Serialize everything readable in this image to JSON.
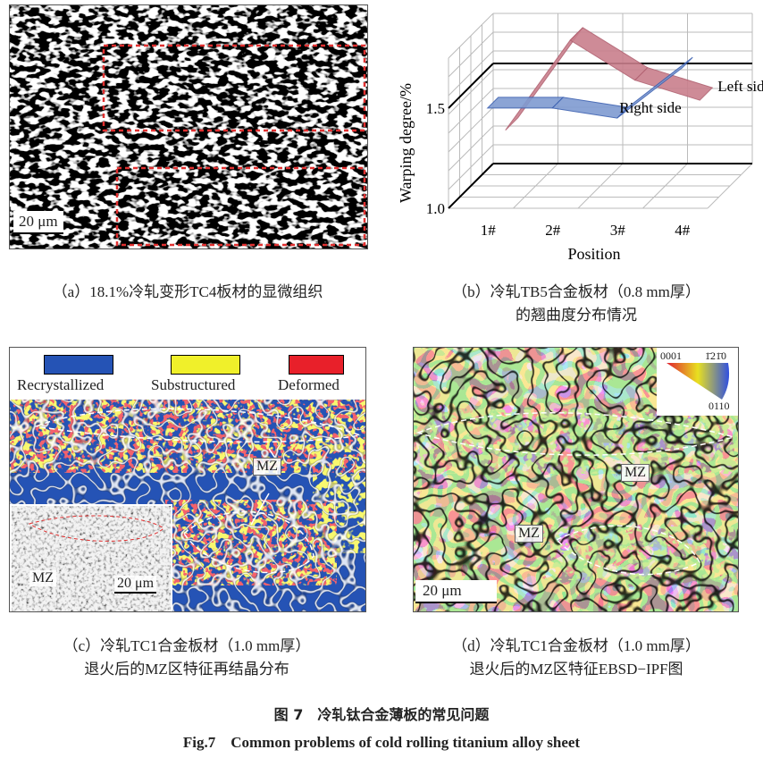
{
  "panel_a": {
    "scale_bar": "20 μm",
    "caption": "（a）18.1%冷轧变形TC4板材的显微组织"
  },
  "panel_b": {
    "caption_line1": "（b）冷轧TB5合金板材（0.8 mm厚）",
    "caption_line2": "的翘曲度分布情况"
  },
  "chart_data": {
    "type": "line",
    "style": "3d-ribbon",
    "categories": [
      "1#",
      "2#",
      "3#",
      "4#"
    ],
    "xlabel": "Position",
    "ylabel": "Warping degree/%",
    "ylim": [
      1.0,
      1.75
    ],
    "yticks": [
      "1.0",
      "1.5"
    ],
    "grid": true,
    "series": [
      {
        "name": "Left side",
        "values": [
          1.2,
          1.65,
          1.45,
          1.35
        ],
        "color": "#c97f8c"
      },
      {
        "name": "Right side",
        "values": [
          1.4,
          1.4,
          1.35,
          1.6
        ],
        "color": "#7f9bd1"
      }
    ]
  },
  "panel_c": {
    "legend": [
      {
        "label": "Recrystallized",
        "color": "#2553b5"
      },
      {
        "label": "Substructured",
        "color": "#f0f02a"
      },
      {
        "label": "Deformed",
        "color": "#e8202a"
      }
    ],
    "mz_label": "MZ",
    "inset_mz_label": "MZ",
    "inset_scale_bar": "20 μm",
    "caption_line1": "（c）冷轧TC1合金板材（1.0 mm厚）",
    "caption_line2": "退火后的MZ区特征再结晶分布"
  },
  "panel_d": {
    "ipf_key": {
      "corner1": "0001",
      "corner2": "1̄21̄0",
      "corner3": "0110"
    },
    "mz_label_1": "MZ",
    "mz_label_2": "MZ",
    "scale_bar": "20 μm",
    "caption_line1": "（d）冷轧TC1合金板材（1.0 mm厚）",
    "caption_line2": "退火后的MZ区特征EBSD−IPF图"
  },
  "figure": {
    "title_cn": "图 7　冷轧钛合金薄板的常见问题",
    "title_en": "Fig.7　Common problems of cold rolling titanium alloy sheet"
  }
}
